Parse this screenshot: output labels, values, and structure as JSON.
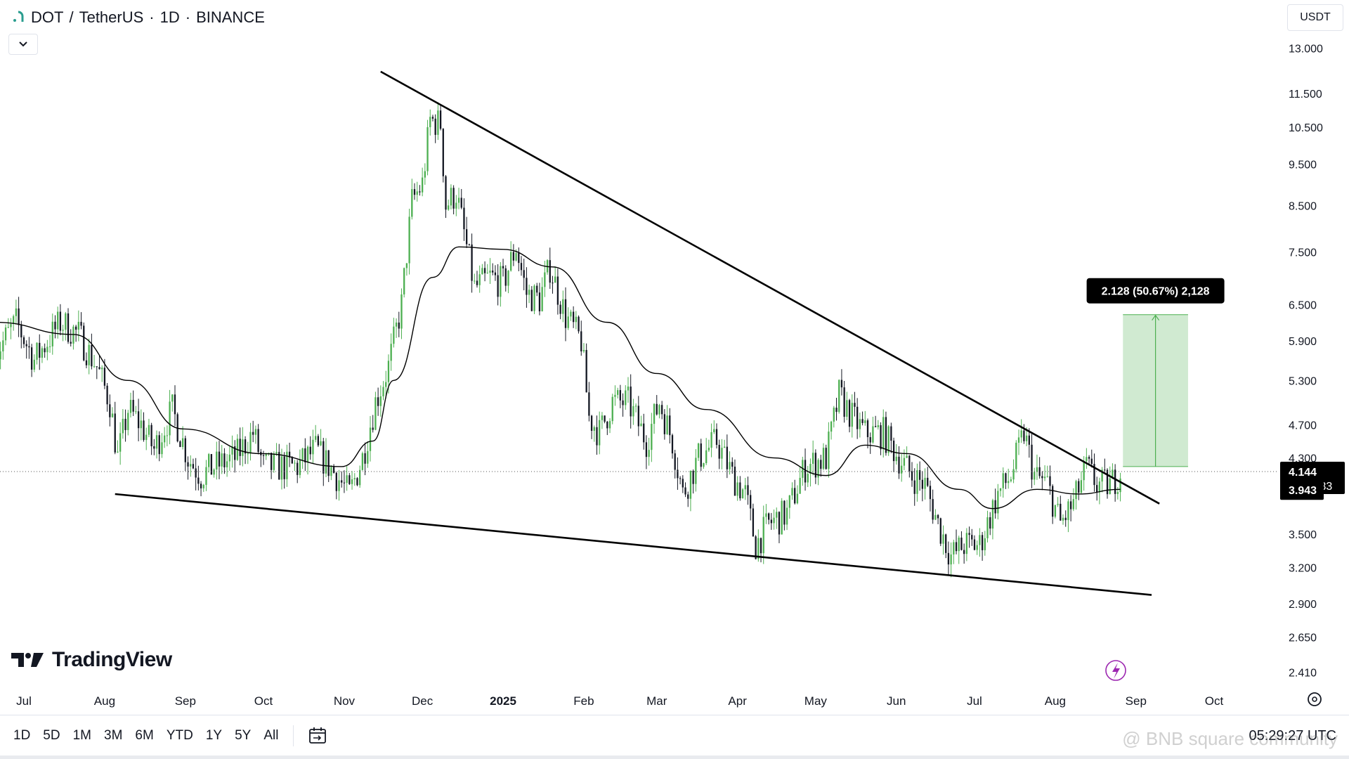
{
  "header": {
    "symbol": "DOT",
    "quote": "TetherUS",
    "interval": "1D",
    "exchange": "BINANCE",
    "separator": "/",
    "dot": "·"
  },
  "currency_button": "USDT",
  "branding": {
    "name": "TradingView"
  },
  "toolbar": {
    "timeframes": [
      "1D",
      "5D",
      "1M",
      "3M",
      "6M",
      "YTD",
      "1Y",
      "5Y",
      "All"
    ],
    "clock": "05:29:27 UTC"
  },
  "watermark": "@ BNB square community",
  "colors": {
    "up": "#4caf50",
    "down": "#131722",
    "trendline": "#000000",
    "ma": "#000000",
    "measure_fill": "#c8e6c9",
    "measure_line": "#4caf50",
    "measure_label_bg": "#000000",
    "axis_text": "#131722"
  },
  "chart_data": {
    "type": "candlestick",
    "scale": "log",
    "y_axis_ticks": [
      13.0,
      11.5,
      10.5,
      9.5,
      8.5,
      7.5,
      6.5,
      5.9,
      5.3,
      4.7,
      4.3,
      3.5,
      3.2,
      2.9,
      2.65,
      2.41
    ],
    "y_axis_tick_labels": [
      "13.000",
      "11.500",
      "10.500",
      "9.500",
      "8.500",
      "7.500",
      "6.500",
      "5.900",
      "5.300",
      "4.700",
      "4.300",
      "3.500",
      "3.200",
      "2.900",
      "2.650",
      "2.410"
    ],
    "ylim": [
      2.35,
      14.8
    ],
    "x_axis_labels": [
      "Jul",
      "Aug",
      "Sep",
      "Oct",
      "Nov",
      "Dec",
      "2025",
      "Feb",
      "Mar",
      "Apr",
      "May",
      "Jun",
      "Jul",
      "Aug",
      "Sep",
      "Oct"
    ],
    "x_axis_label_dates": [
      "2024-07-01",
      "2024-08-01",
      "2024-09-01",
      "2024-10-01",
      "2024-11-01",
      "2024-12-01",
      "2025-01-01",
      "2025-02-01",
      "2025-03-01",
      "2025-04-01",
      "2025-05-01",
      "2025-06-01",
      "2025-07-01",
      "2025-08-01",
      "2025-09-01",
      "2025-10-01"
    ],
    "price_series": [
      {
        "date": "2024-06-20",
        "close": 5.7
      },
      {
        "date": "2024-06-28",
        "close": 6.2
      },
      {
        "date": "2024-07-05",
        "close": 5.6
      },
      {
        "date": "2024-07-15",
        "close": 6.2
      },
      {
        "date": "2024-07-22",
        "close": 6.0
      },
      {
        "date": "2024-07-29",
        "close": 5.5
      },
      {
        "date": "2024-08-03",
        "close": 5.0
      },
      {
        "date": "2024-08-06",
        "close": 4.3
      },
      {
        "date": "2024-08-10",
        "close": 4.9
      },
      {
        "date": "2024-08-15",
        "close": 4.7
      },
      {
        "date": "2024-08-20",
        "close": 4.4
      },
      {
        "date": "2024-08-27",
        "close": 4.9
      },
      {
        "date": "2024-09-02",
        "close": 4.3
      },
      {
        "date": "2024-09-07",
        "close": 4.1
      },
      {
        "date": "2024-09-12",
        "close": 4.2
      },
      {
        "date": "2024-09-20",
        "close": 4.3
      },
      {
        "date": "2024-09-27",
        "close": 4.6
      },
      {
        "date": "2024-10-01",
        "close": 4.2
      },
      {
        "date": "2024-10-07",
        "close": 4.2
      },
      {
        "date": "2024-10-14",
        "close": 4.2
      },
      {
        "date": "2024-10-21",
        "close": 4.4
      },
      {
        "date": "2024-10-29",
        "close": 4.1
      },
      {
        "date": "2024-11-03",
        "close": 3.9
      },
      {
        "date": "2024-11-08",
        "close": 4.3
      },
      {
        "date": "2024-11-13",
        "close": 5.0
      },
      {
        "date": "2024-11-18",
        "close": 5.5
      },
      {
        "date": "2024-11-23",
        "close": 6.5
      },
      {
        "date": "2024-11-27",
        "close": 8.6
      },
      {
        "date": "2024-12-01",
        "close": 9.0
      },
      {
        "date": "2024-12-04",
        "close": 10.7
      },
      {
        "date": "2024-12-08",
        "close": 10.6
      },
      {
        "date": "2024-12-10",
        "close": 8.5
      },
      {
        "date": "2024-12-14",
        "close": 8.8
      },
      {
        "date": "2024-12-18",
        "close": 7.6
      },
      {
        "date": "2024-12-21",
        "close": 6.8
      },
      {
        "date": "2024-12-27",
        "close": 7.0
      },
      {
        "date": "2025-01-01",
        "close": 6.9
      },
      {
        "date": "2025-01-06",
        "close": 7.6
      },
      {
        "date": "2025-01-10",
        "close": 6.7
      },
      {
        "date": "2025-01-15",
        "close": 6.6
      },
      {
        "date": "2025-01-19",
        "close": 7.2
      },
      {
        "date": "2025-01-25",
        "close": 6.3
      },
      {
        "date": "2025-01-31",
        "close": 5.9
      },
      {
        "date": "2025-02-03",
        "close": 4.8
      },
      {
        "date": "2025-02-07",
        "close": 4.6
      },
      {
        "date": "2025-02-12",
        "close": 5.0
      },
      {
        "date": "2025-02-18",
        "close": 5.0
      },
      {
        "date": "2025-02-25",
        "close": 4.5
      },
      {
        "date": "2025-03-02",
        "close": 5.0
      },
      {
        "date": "2025-03-07",
        "close": 4.5
      },
      {
        "date": "2025-03-11",
        "close": 3.9
      },
      {
        "date": "2025-03-17",
        "close": 4.3
      },
      {
        "date": "2025-03-24",
        "close": 4.5
      },
      {
        "date": "2025-03-30",
        "close": 4.1
      },
      {
        "date": "2025-04-04",
        "close": 3.9
      },
      {
        "date": "2025-04-08",
        "close": 3.4
      },
      {
        "date": "2025-04-13",
        "close": 3.6
      },
      {
        "date": "2025-04-20",
        "close": 3.7
      },
      {
        "date": "2025-04-27",
        "close": 4.2
      },
      {
        "date": "2025-05-05",
        "close": 4.3
      },
      {
        "date": "2025-05-10",
        "close": 5.1
      },
      {
        "date": "2025-05-15",
        "close": 4.8
      },
      {
        "date": "2025-05-20",
        "close": 4.6
      },
      {
        "date": "2025-05-27",
        "close": 4.6
      },
      {
        "date": "2025-06-02",
        "close": 4.3
      },
      {
        "date": "2025-06-07",
        "close": 4.1
      },
      {
        "date": "2025-06-12",
        "close": 4.0
      },
      {
        "date": "2025-06-17",
        "close": 3.6
      },
      {
        "date": "2025-06-22",
        "close": 3.3
      },
      {
        "date": "2025-06-27",
        "close": 3.4
      },
      {
        "date": "2025-07-03",
        "close": 3.4
      },
      {
        "date": "2025-07-10",
        "close": 3.9
      },
      {
        "date": "2025-07-15",
        "close": 4.1
      },
      {
        "date": "2025-07-20",
        "close": 4.6
      },
      {
        "date": "2025-07-24",
        "close": 4.1
      },
      {
        "date": "2025-07-29",
        "close": 4.0
      },
      {
        "date": "2025-08-03",
        "close": 3.6
      },
      {
        "date": "2025-08-08",
        "close": 3.8
      },
      {
        "date": "2025-08-13",
        "close": 4.2
      },
      {
        "date": "2025-08-17",
        "close": 4.0
      },
      {
        "date": "2025-08-22",
        "close": 4.0
      },
      {
        "date": "2025-08-26",
        "close": 4.14
      }
    ],
    "moving_average": [
      {
        "date": "2024-06-20",
        "value": 6.2
      },
      {
        "date": "2024-07-20",
        "value": 6.0
      },
      {
        "date": "2024-08-10",
        "value": 5.3
      },
      {
        "date": "2024-08-31",
        "value": 4.65
      },
      {
        "date": "2024-09-30",
        "value": 4.35
      },
      {
        "date": "2024-10-31",
        "value": 4.2
      },
      {
        "date": "2024-11-12",
        "value": 4.5
      },
      {
        "date": "2024-11-20",
        "value": 5.3
      },
      {
        "date": "2024-12-05",
        "value": 7.0
      },
      {
        "date": "2024-12-15",
        "value": 7.6
      },
      {
        "date": "2025-01-01",
        "value": 7.55
      },
      {
        "date": "2025-01-20",
        "value": 7.2
      },
      {
        "date": "2025-02-10",
        "value": 6.2
      },
      {
        "date": "2025-03-01",
        "value": 5.4
      },
      {
        "date": "2025-03-20",
        "value": 4.9
      },
      {
        "date": "2025-04-15",
        "value": 4.3
      },
      {
        "date": "2025-05-05",
        "value": 4.1
      },
      {
        "date": "2025-05-20",
        "value": 4.45
      },
      {
        "date": "2025-06-05",
        "value": 4.35
      },
      {
        "date": "2025-06-25",
        "value": 3.95
      },
      {
        "date": "2025-07-08",
        "value": 3.75
      },
      {
        "date": "2025-07-25",
        "value": 3.95
      },
      {
        "date": "2025-08-10",
        "value": 3.9
      },
      {
        "date": "2025-08-26",
        "value": 3.95
      }
    ],
    "trendlines": [
      {
        "from": {
          "date": "2024-11-15",
          "price": 12.2
        },
        "to": {
          "date": "2025-09-10",
          "price": 3.8
        }
      },
      {
        "from": {
          "date": "2024-08-05",
          "price": 3.9
        },
        "to": {
          "date": "2025-09-07",
          "price": 2.97
        }
      }
    ],
    "measure_box": {
      "from_date": "2025-08-27",
      "to_date": "2025-09-21",
      "low": 4.2,
      "high": 6.33,
      "label": "2.128 (50.67%) 2,128"
    },
    "current_price": 4.144,
    "current_price_label": "4.144",
    "countdown": "18:30:33",
    "ma_value_label": "3.943",
    "ma_value": 3.943
  }
}
